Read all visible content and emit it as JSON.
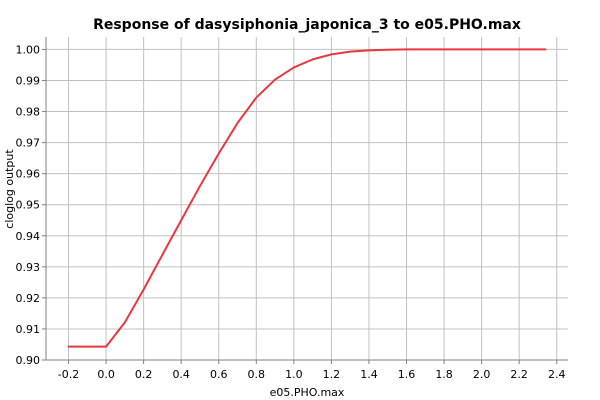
{
  "chart_data": {
    "type": "line",
    "title": "Response of dasysiphonia_japonica_3 to e05.PHO.max",
    "xlabel": "e05.PHO.max",
    "ylabel": "cloglog output",
    "xlim": [
      -0.32,
      2.46
    ],
    "ylim": [
      0.9,
      1.004
    ],
    "x_ticks": [
      -0.2,
      0.0,
      0.2,
      0.4,
      0.6,
      0.8,
      1.0,
      1.2,
      1.4,
      1.6,
      1.8,
      2.0,
      2.2,
      2.4
    ],
    "x_tick_labels": [
      "-0.2",
      "0.0",
      "0.2",
      "0.4",
      "0.6",
      "0.8",
      "1.0",
      "1.2",
      "1.4",
      "1.6",
      "1.8",
      "2.0",
      "2.2",
      "2.4"
    ],
    "y_ticks": [
      0.9,
      0.91,
      0.92,
      0.93,
      0.94,
      0.95,
      0.96,
      0.97,
      0.98,
      0.99,
      1.0
    ],
    "y_tick_labels": [
      "0.90",
      "0.91",
      "0.92",
      "0.93",
      "0.94",
      "0.95",
      "0.96",
      "0.97",
      "0.98",
      "0.99",
      "1.00"
    ],
    "grid": true,
    "series": [
      {
        "color": "#e8383d",
        "x": [
          -0.2,
          -0.1,
          0.0,
          0.1,
          0.2,
          0.3,
          0.4,
          0.5,
          0.6,
          0.7,
          0.8,
          0.9,
          1.0,
          1.1,
          1.2,
          1.3,
          1.4,
          1.5,
          1.6,
          1.8,
          2.0,
          2.2,
          2.34
        ],
        "y": [
          0.9043,
          0.9043,
          0.9043,
          0.9121,
          0.9227,
          0.9339,
          0.945,
          0.956,
          0.9665,
          0.9763,
          0.9845,
          0.9903,
          0.9942,
          0.9968,
          0.9984,
          0.9993,
          0.9997,
          0.9999,
          1.0,
          1.0,
          1.0,
          1.0,
          1.0
        ]
      }
    ]
  }
}
